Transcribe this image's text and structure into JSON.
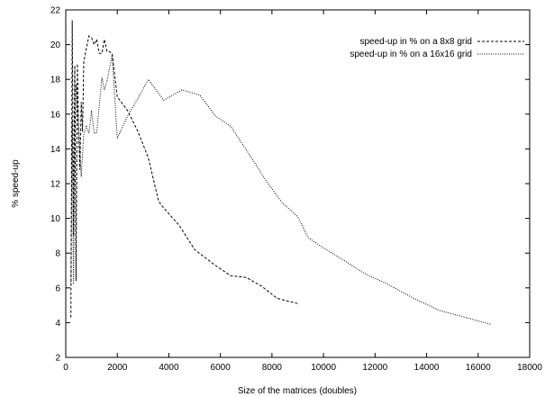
{
  "chart_data": {
    "type": "line",
    "title": "",
    "xlabel": "Size of the matrices (doubles)",
    "ylabel": "% speed-up",
    "xlim": [
      0,
      18000
    ],
    "ylim": [
      2,
      22
    ],
    "xticks": [
      0,
      2000,
      4000,
      6000,
      8000,
      10000,
      12000,
      14000,
      16000,
      18000
    ],
    "yticks": [
      2,
      4,
      6,
      8,
      10,
      12,
      14,
      16,
      18,
      20,
      22
    ],
    "grid": false,
    "legend_position": "top-right",
    "series": [
      {
        "name": "speed-up in % on a 8x8 grid",
        "style": "dashed",
        "color": "#000000",
        "points": [
          [
            200,
            4.3
          ],
          [
            250,
            21.4
          ],
          [
            300,
            9.0
          ],
          [
            350,
            18.8
          ],
          [
            400,
            6.4
          ],
          [
            450,
            18.9
          ],
          [
            500,
            14.9
          ],
          [
            550,
            12.8
          ],
          [
            600,
            16.7
          ],
          [
            650,
            15.0
          ],
          [
            700,
            19.0
          ],
          [
            800,
            19.8
          ],
          [
            900,
            20.5
          ],
          [
            1000,
            20.4
          ],
          [
            1100,
            20.0
          ],
          [
            1200,
            20.3
          ],
          [
            1300,
            19.5
          ],
          [
            1400,
            19.5
          ],
          [
            1500,
            20.3
          ],
          [
            1600,
            19.6
          ],
          [
            1700,
            19.6
          ],
          [
            1800,
            19.5
          ],
          [
            1900,
            18.2
          ],
          [
            2000,
            17.0
          ],
          [
            2400,
            16.2
          ],
          [
            2800,
            15.0
          ],
          [
            3200,
            13.5
          ],
          [
            3600,
            11.0
          ],
          [
            3800,
            10.6
          ],
          [
            4400,
            9.6
          ],
          [
            5000,
            8.2
          ],
          [
            5800,
            7.3
          ],
          [
            6400,
            6.7
          ],
          [
            7000,
            6.6
          ],
          [
            7600,
            6.1
          ],
          [
            8200,
            5.4
          ],
          [
            9000,
            5.1
          ]
        ]
      },
      {
        "name": "speed-up in % on a 16x16 grid",
        "style": "dotted",
        "color": "#000000",
        "points": [
          [
            200,
            6.2
          ],
          [
            250,
            15.7
          ],
          [
            300,
            6.2
          ],
          [
            350,
            13.9
          ],
          [
            400,
            17.7
          ],
          [
            500,
            15.2
          ],
          [
            600,
            12.4
          ],
          [
            700,
            14.9
          ],
          [
            800,
            15.3
          ],
          [
            900,
            14.9
          ],
          [
            1000,
            16.2
          ],
          [
            1100,
            14.9
          ],
          [
            1200,
            14.9
          ],
          [
            1300,
            16.5
          ],
          [
            1400,
            18.1
          ],
          [
            1500,
            17.4
          ],
          [
            1600,
            17.9
          ],
          [
            1800,
            19.4
          ],
          [
            2000,
            14.6
          ],
          [
            2400,
            15.9
          ],
          [
            2800,
            16.9
          ],
          [
            3200,
            18.0
          ],
          [
            3800,
            16.8
          ],
          [
            4500,
            17.4
          ],
          [
            5200,
            17.1
          ],
          [
            5800,
            15.9
          ],
          [
            6400,
            15.3
          ],
          [
            7200,
            13.5
          ],
          [
            7800,
            12.1
          ],
          [
            8400,
            10.9
          ],
          [
            9000,
            10.1
          ],
          [
            9400,
            8.9
          ],
          [
            10000,
            8.3
          ],
          [
            11000,
            7.4
          ],
          [
            11500,
            6.9
          ],
          [
            12500,
            6.2
          ],
          [
            13500,
            5.4
          ],
          [
            14500,
            4.7
          ],
          [
            15500,
            4.3
          ],
          [
            16500,
            3.9
          ]
        ]
      }
    ]
  }
}
